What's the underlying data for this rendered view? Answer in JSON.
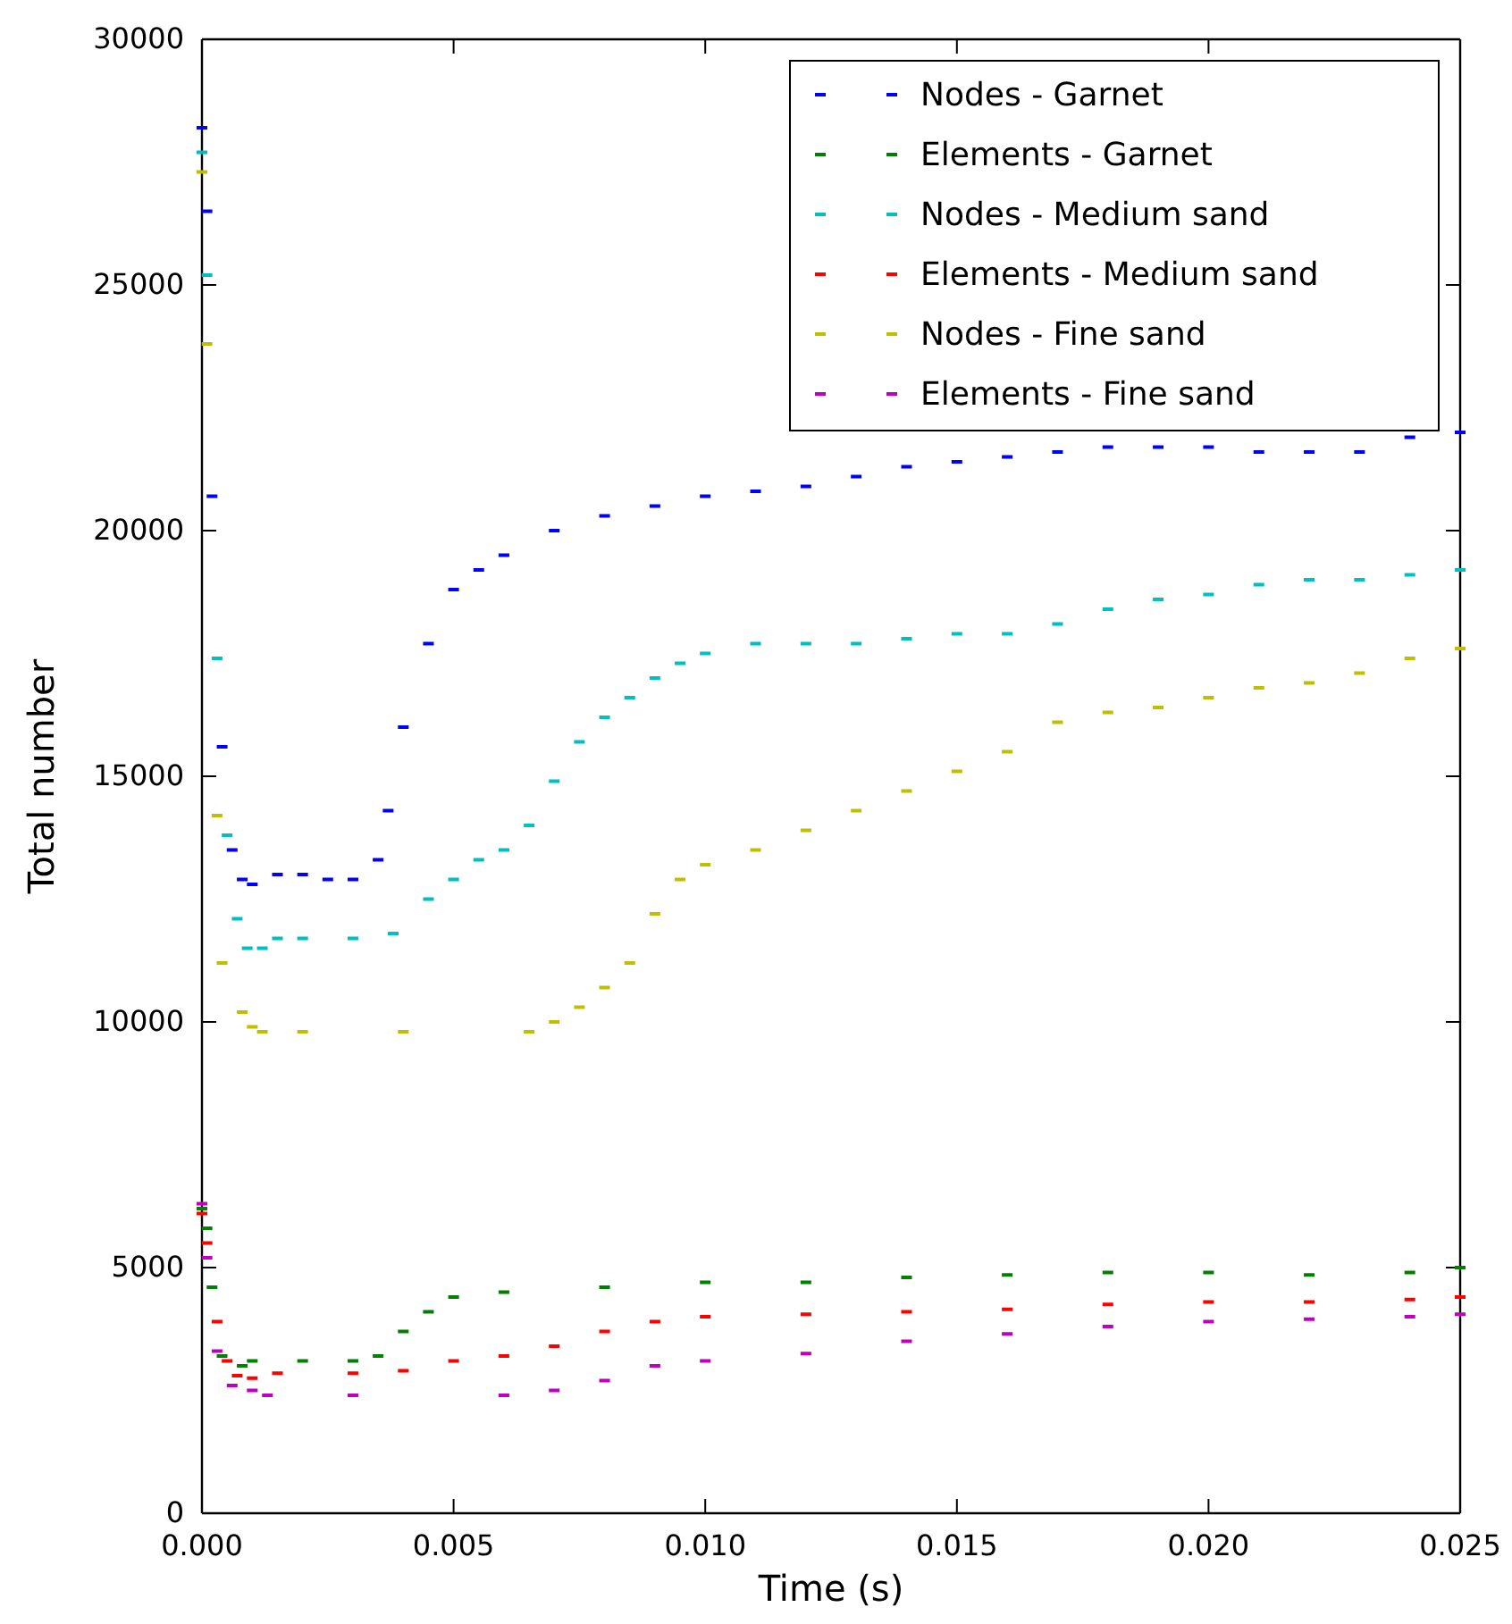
{
  "chart_data": {
    "type": "scatter",
    "xlabel": "Time (s)",
    "ylabel": "Total number",
    "xlim": [
      0,
      0.025
    ],
    "ylim": [
      0,
      30000
    ],
    "xticks": [
      {
        "value": 0,
        "label": "0.000"
      },
      {
        "value": 0.005,
        "label": "0.005"
      },
      {
        "value": 0.01,
        "label": "0.010"
      },
      {
        "value": 0.015,
        "label": "0.015"
      },
      {
        "value": 0.02,
        "label": "0.020"
      },
      {
        "value": 0.025,
        "label": "0.025"
      }
    ],
    "yticks": [
      0,
      5000,
      10000,
      15000,
      20000,
      25000,
      30000
    ],
    "grid": false,
    "legend": "top right",
    "marker": "square",
    "series": [
      {
        "name": "Nodes - Garnet",
        "color": "#0000ff",
        "x": [
          0,
          0.0001,
          0.0002,
          0.0004,
          0.0006,
          0.0008,
          0.001,
          0.0015,
          0.002,
          0.0025,
          0.003,
          0.0035,
          0.0037,
          0.004,
          0.0045,
          0.005,
          0.0055,
          0.006,
          0.007,
          0.008,
          0.009,
          0.01,
          0.011,
          0.012,
          0.013,
          0.014,
          0.015,
          0.016,
          0.017,
          0.018,
          0.019,
          0.02,
          0.021,
          0.022,
          0.023,
          0.024,
          0.025
        ],
        "values": [
          28200,
          26500,
          20700,
          15600,
          13500,
          12900,
          12800,
          13000,
          13000,
          12900,
          12900,
          13300,
          14300,
          16000,
          17700,
          18800,
          19200,
          19500,
          20000,
          20300,
          20500,
          20700,
          20800,
          20900,
          21100,
          21300,
          21400,
          21500,
          21600,
          21700,
          21700,
          21700,
          21600,
          21600,
          21600,
          21900,
          22000
        ]
      },
      {
        "name": "Elements - Garnet",
        "color": "#008000",
        "x": [
          0,
          0.0001,
          0.0002,
          0.0004,
          0.0008,
          0.001,
          0.002,
          0.003,
          0.0035,
          0.004,
          0.0045,
          0.005,
          0.006,
          0.008,
          0.01,
          0.012,
          0.014,
          0.016,
          0.018,
          0.02,
          0.022,
          0.024,
          0.025
        ],
        "values": [
          6200,
          5800,
          4600,
          3200,
          3000,
          3100,
          3100,
          3100,
          3200,
          3700,
          4100,
          4400,
          4500,
          4600,
          4700,
          4700,
          4800,
          4850,
          4900,
          4900,
          4850,
          4900,
          5000
        ]
      },
      {
        "name": "Nodes - Medium sand",
        "color": "#00bfbf",
        "x": [
          0,
          0.0001,
          0.0003,
          0.0005,
          0.0007,
          0.0009,
          0.0012,
          0.0015,
          0.002,
          0.003,
          0.0038,
          0.0045,
          0.005,
          0.0055,
          0.006,
          0.0065,
          0.007,
          0.0075,
          0.008,
          0.0085,
          0.009,
          0.0095,
          0.01,
          0.011,
          0.012,
          0.013,
          0.014,
          0.015,
          0.016,
          0.017,
          0.018,
          0.019,
          0.02,
          0.021,
          0.022,
          0.023,
          0.024,
          0.025
        ],
        "values": [
          27700,
          25200,
          17400,
          13800,
          12100,
          11500,
          11500,
          11700,
          11700,
          11700,
          11800,
          12500,
          12900,
          13300,
          13500,
          14000,
          14900,
          15700,
          16200,
          16600,
          17000,
          17300,
          17500,
          17700,
          17700,
          17700,
          17800,
          17900,
          17900,
          18100,
          18400,
          18600,
          18700,
          18900,
          19000,
          19000,
          19100,
          19200
        ]
      },
      {
        "name": "Elements - Medium sand",
        "color": "#ff0000",
        "x": [
          0,
          0.0001,
          0.0003,
          0.0005,
          0.0007,
          0.001,
          0.0015,
          0.003,
          0.004,
          0.005,
          0.006,
          0.007,
          0.008,
          0.009,
          0.01,
          0.012,
          0.014,
          0.016,
          0.018,
          0.02,
          0.022,
          0.024,
          0.025
        ],
        "values": [
          6100,
          5500,
          3900,
          3100,
          2800,
          2750,
          2850,
          2850,
          2900,
          3100,
          3200,
          3400,
          3700,
          3900,
          4000,
          4050,
          4100,
          4150,
          4250,
          4300,
          4300,
          4350,
          4400
        ]
      },
      {
        "name": "Nodes - Fine sand",
        "color": "#bfbf00",
        "x": [
          0,
          0.0001,
          0.0003,
          0.0004,
          0.0008,
          0.001,
          0.0012,
          0.002,
          0.004,
          0.0065,
          0.007,
          0.0075,
          0.008,
          0.0085,
          0.009,
          0.0095,
          0.01,
          0.011,
          0.012,
          0.013,
          0.014,
          0.015,
          0.016,
          0.017,
          0.018,
          0.019,
          0.02,
          0.021,
          0.022,
          0.023,
          0.024,
          0.025
        ],
        "values": [
          27300,
          23800,
          14200,
          11200,
          10200,
          9900,
          9800,
          9800,
          9800,
          9800,
          10000,
          10300,
          10700,
          11200,
          12200,
          12900,
          13200,
          13500,
          13900,
          14300,
          14700,
          15100,
          15500,
          16100,
          16300,
          16400,
          16600,
          16800,
          16900,
          17100,
          17400,
          17600
        ]
      },
      {
        "name": "Elements - Fine sand",
        "color": "#bf00bf",
        "x": [
          0,
          0.0001,
          0.0003,
          0.0006,
          0.001,
          0.0013,
          0.003,
          0.006,
          0.007,
          0.008,
          0.009,
          0.01,
          0.012,
          0.014,
          0.016,
          0.018,
          0.02,
          0.022,
          0.024,
          0.025
        ],
        "values": [
          6300,
          5200,
          3300,
          2600,
          2500,
          2400,
          2400,
          2400,
          2500,
          2700,
          3000,
          3100,
          3250,
          3500,
          3650,
          3800,
          3900,
          3950,
          4000,
          4050
        ]
      }
    ]
  }
}
